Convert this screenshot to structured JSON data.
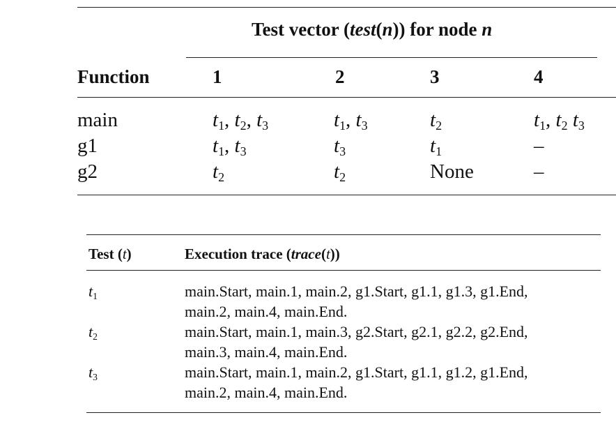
{
  "table1": {
    "spanner": {
      "pre": "Test vector (",
      "var": "test",
      "open": "(",
      "arg": "n",
      "close": "))",
      "post": " for node ",
      "node": "n"
    },
    "corner": "Function",
    "columns": [
      "1",
      "2",
      "3",
      "4"
    ],
    "rows": [
      {
        "name": "main",
        "cells": [
          [
            {
              "t": "t",
              "s": "1"
            },
            {
              "p": ", "
            },
            {
              "t": "t",
              "s": "2"
            },
            {
              "p": ", "
            },
            {
              "t": "t",
              "s": "3"
            }
          ],
          [
            {
              "t": "t",
              "s": "1"
            },
            {
              "p": ", "
            },
            {
              "t": "t",
              "s": "3"
            }
          ],
          [
            {
              "t": "t",
              "s": "2"
            }
          ],
          [
            {
              "t": "t",
              "s": "1"
            },
            {
              "p": ", "
            },
            {
              "t": "t",
              "s": "2"
            },
            {
              "p": " "
            },
            {
              "t": "t",
              "s": "3"
            }
          ]
        ]
      },
      {
        "name": "g1",
        "cells": [
          [
            {
              "t": "t",
              "s": "1"
            },
            {
              "p": ", "
            },
            {
              "t": "t",
              "s": "3"
            }
          ],
          [
            {
              "t": "t",
              "s": "3"
            }
          ],
          [
            {
              "t": "t",
              "s": "1"
            }
          ],
          [
            {
              "p": "–"
            }
          ]
        ]
      },
      {
        "name": "g2",
        "cells": [
          [
            {
              "t": "t",
              "s": "2"
            }
          ],
          [
            {
              "t": "t",
              "s": "2"
            }
          ],
          [
            {
              "p": "None"
            }
          ],
          [
            {
              "p": "–"
            }
          ]
        ]
      }
    ]
  },
  "table2": {
    "col1_header": {
      "pre": "Test (",
      "var": "t",
      "post": ")"
    },
    "col2_header": {
      "pre": "Execution trace (",
      "var": "trace",
      "mid": "(",
      "arg": "t",
      "post": "))"
    },
    "rows": [
      {
        "test": "t",
        "sub": "1",
        "line1": "main.Start, main.1, main.2, g1.Start, g1.1, g1.3, g1.End,",
        "line2": "main.2, main.4, main.End."
      },
      {
        "test": "t",
        "sub": "2",
        "line1": "main.Start, main.1, main.3, g2.Start, g2.1, g2.2, g2.End,",
        "line2": "main.3, main.4, main.End."
      },
      {
        "test": "t",
        "sub": "3",
        "line1": "main.Start, main.1, main.2, g1.Start, g1.1, g1.2, g1.End,",
        "line2": "main.2, main.4, main.End."
      }
    ]
  }
}
